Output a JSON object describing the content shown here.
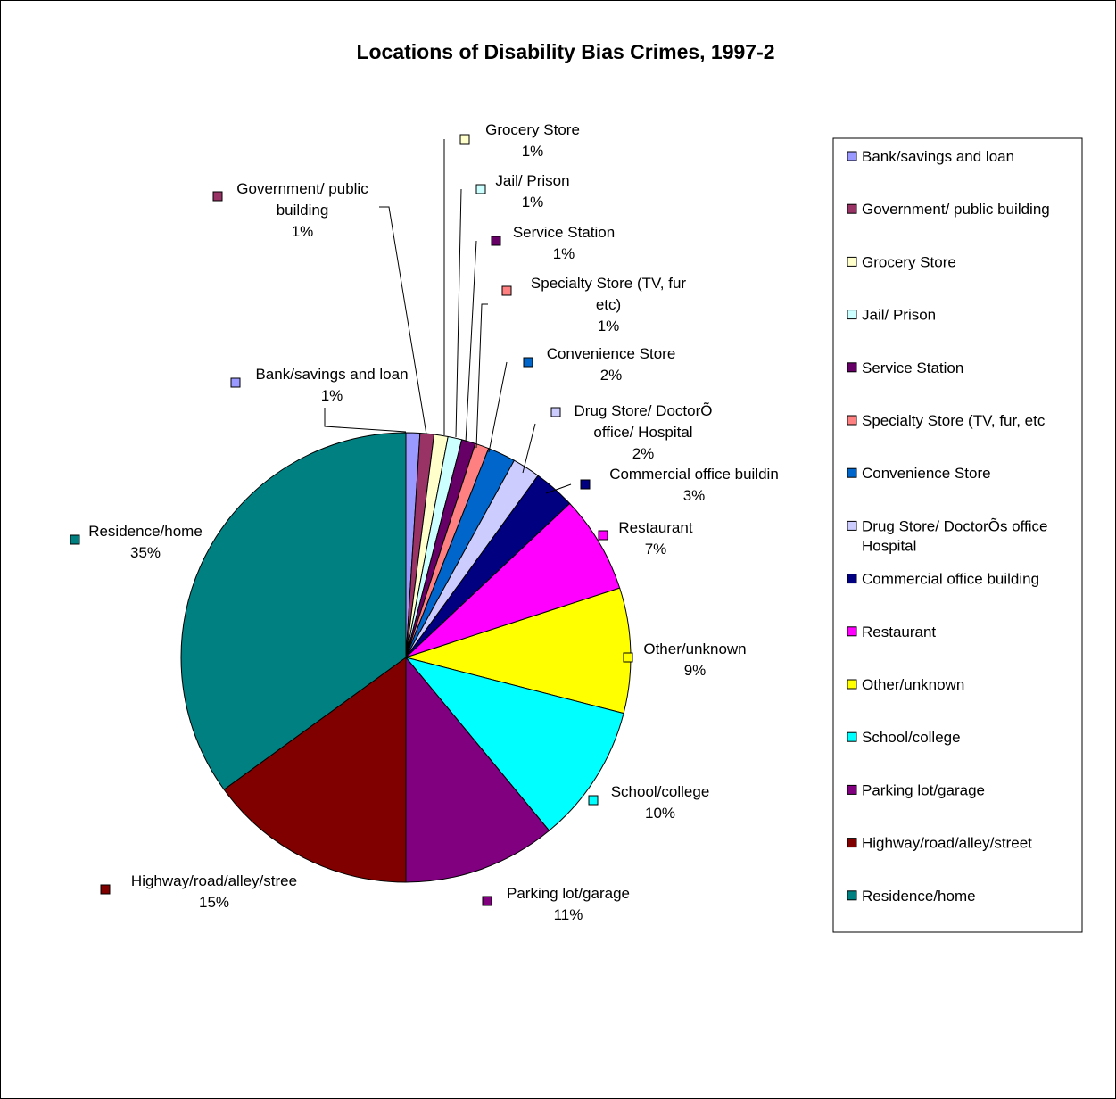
{
  "chart_data": {
    "type": "pie",
    "title": "Locations of Disability Bias Crimes, 1997-2",
    "slices": [
      {
        "name": "Bank/savings and loan",
        "label_lines": [
          "Bank/savings and loan"
        ],
        "pct": "1%",
        "value": 1,
        "color": "#9999ff"
      },
      {
        "name": "Government/ public building",
        "label_lines": [
          "Government/ public",
          "building"
        ],
        "pct": "1%",
        "value": 1,
        "color": "#993366"
      },
      {
        "name": "Grocery Store",
        "label_lines": [
          "Grocery Store"
        ],
        "pct": "1%",
        "value": 1,
        "color": "#ffffcc"
      },
      {
        "name": "Jail/ Prison",
        "label_lines": [
          "Jail/ Prison"
        ],
        "pct": "1%",
        "value": 1,
        "color": "#ccffff"
      },
      {
        "name": "Service Station",
        "label_lines": [
          "Service Station"
        ],
        "pct": "1%",
        "value": 1,
        "color": "#660066"
      },
      {
        "name": "Specialty Store (TV, fur, etc)",
        "label_lines": [
          "Specialty Store (TV, fur",
          "etc)"
        ],
        "pct": "1%",
        "value": 1,
        "color": "#ff8080"
      },
      {
        "name": "Convenience Store",
        "label_lines": [
          "Convenience Store"
        ],
        "pct": "2%",
        "value": 2,
        "color": "#0066cc"
      },
      {
        "name": "Drug Store/ DoctorÕs office/ Hospital",
        "label_lines": [
          "Drug Store/ DoctorÕ",
          "office/ Hospital"
        ],
        "pct": "2%",
        "value": 2,
        "color": "#ccccff"
      },
      {
        "name": "Commercial office building",
        "label_lines": [
          "Commercial office buildin"
        ],
        "pct": "3%",
        "value": 3,
        "color": "#000080"
      },
      {
        "name": "Restaurant",
        "label_lines": [
          "Restaurant"
        ],
        "pct": "7%",
        "value": 7,
        "color": "#ff00ff"
      },
      {
        "name": "Other/unknown",
        "label_lines": [
          "Other/unknown"
        ],
        "pct": "9%",
        "value": 9,
        "color": "#ffff00"
      },
      {
        "name": "School/college",
        "label_lines": [
          "School/college"
        ],
        "pct": "10%",
        "value": 10,
        "color": "#00ffff"
      },
      {
        "name": "Parking lot/garage",
        "label_lines": [
          "Parking lot/garage"
        ],
        "pct": "11%",
        "value": 11,
        "color": "#800080"
      },
      {
        "name": "Highway/road/alley/street",
        "label_lines": [
          "Highway/road/alley/stree"
        ],
        "pct": "15%",
        "value": 15,
        "color": "#800000"
      },
      {
        "name": "Residence/home",
        "label_lines": [
          "Residence/home"
        ],
        "pct": "35%",
        "value": 35,
        "color": "#008080"
      }
    ],
    "legend": {
      "placement": "right",
      "entries": [
        {
          "lines": [
            "Bank/savings and loan"
          ],
          "color": "#9999ff"
        },
        {
          "lines": [
            "Government/ public building"
          ],
          "color": "#993366"
        },
        {
          "lines": [
            "Grocery Store"
          ],
          "color": "#ffffcc"
        },
        {
          "lines": [
            "Jail/ Prison"
          ],
          "color": "#ccffff"
        },
        {
          "lines": [
            "Service Station"
          ],
          "color": "#660066"
        },
        {
          "lines": [
            "Specialty Store (TV, fur, etc"
          ],
          "color": "#ff8080"
        },
        {
          "lines": [
            "Convenience Store"
          ],
          "color": "#0066cc"
        },
        {
          "lines": [
            "Drug Store/ DoctorÕs office",
            "Hospital"
          ],
          "color": "#ccccff"
        },
        {
          "lines": [
            "Commercial office building"
          ],
          "color": "#000080"
        },
        {
          "lines": [
            "Restaurant"
          ],
          "color": "#ff00ff"
        },
        {
          "lines": [
            "Other/unknown"
          ],
          "color": "#ffff00"
        },
        {
          "lines": [
            "School/college"
          ],
          "color": "#00ffff"
        },
        {
          "lines": [
            "Parking lot/garage"
          ],
          "color": "#800080"
        },
        {
          "lines": [
            "Highway/road/alley/street"
          ],
          "color": "#800000"
        },
        {
          "lines": [
            "Residence/home"
          ],
          "color": "#008080"
        }
      ]
    }
  }
}
